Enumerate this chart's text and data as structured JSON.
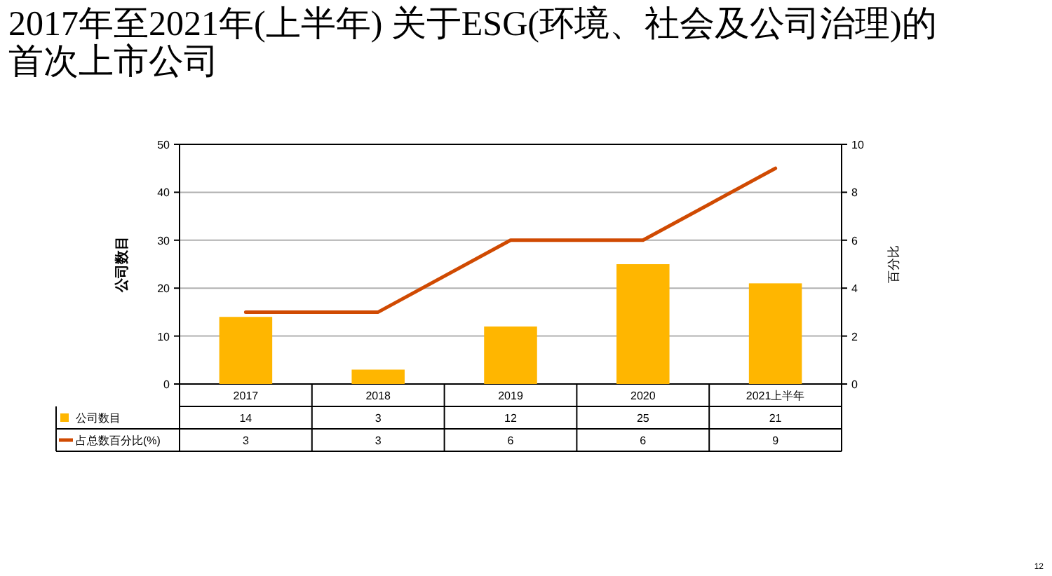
{
  "chart_data": {
    "type": "bar",
    "title": "2017年至2021年(上半年) 关于ESG(环境、社会及公司治理)的首次上市公司",
    "ylabel": "公司数目",
    "y2label": "百分比",
    "categories": [
      "2017",
      "2018",
      "2019",
      "2020",
      "2021上半年"
    ],
    "series": [
      {
        "name": "公司数目",
        "color": "#ffb600",
        "values": [
          14,
          3,
          12,
          25,
          21
        ]
      },
      {
        "name": "占总数百分比(%)",
        "type": "line",
        "axis": "y2",
        "color": "#d04a02",
        "values": [
          3,
          3,
          6,
          6,
          9
        ]
      }
    ],
    "ylim": [
      0,
      50
    ],
    "yticks": [
      0,
      10,
      20,
      30,
      40,
      50
    ],
    "y2lim": [
      0,
      10
    ],
    "y2ticks": [
      0,
      2,
      4,
      6,
      8,
      10
    ],
    "grid": "y",
    "legend": "bottom",
    "data_labels": true,
    "line_style": "solid",
    "marker": "none",
    "annotations": [
      "12"
    ]
  }
}
